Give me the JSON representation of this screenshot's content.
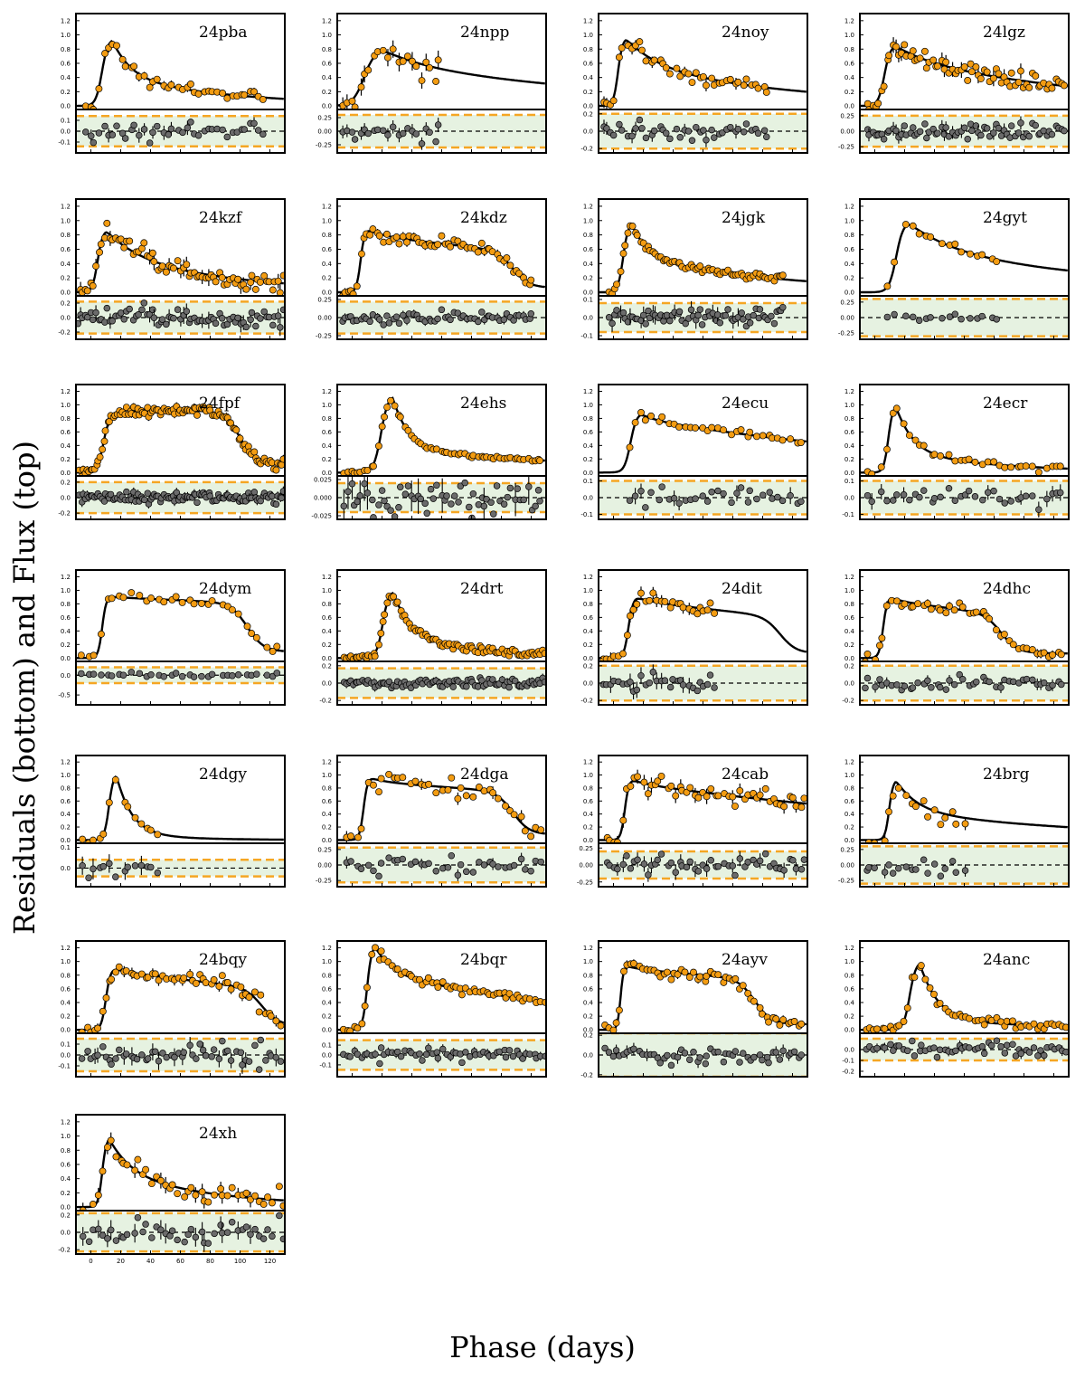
{
  "figure": {
    "xlabel": "Phase (days)",
    "ylabel": "Residuals (bottom) and Flux (top)"
  },
  "chart_data": {
    "type": "scatter",
    "grid": false,
    "xlim": [
      -10,
      130
    ],
    "x_ticks": [
      0,
      20,
      40,
      60,
      80,
      100,
      120
    ],
    "flux_ylim": [
      -0.05,
      1.3
    ],
    "flux_ticks": [
      "0.0",
      "0.2",
      "0.4",
      "0.6",
      "0.8",
      "1.0",
      "1.2"
    ],
    "colors": {
      "flux_points": "#f39c12",
      "residual_points": "#6b6b6b",
      "model": "#000000",
      "band_fill": "#e6f2e1",
      "band_edge": "#f5a623"
    },
    "panels": [
      {
        "name": "24pba",
        "model": {
          "rise": 12,
          "peak_t": 14,
          "peak_f": 0.95,
          "plateau": 0.42,
          "tau1": 12,
          "tau2": 80,
          "drop_t": null
        },
        "t_range": [
          -5,
          118
        ],
        "noise": 0.04,
        "n": 40,
        "res": {
          "range": [
            -0.2,
            0.2
          ],
          "ticks": [
            "0.1",
            "0.0",
            "-0.1"
          ],
          "tickv": [
            0.1,
            0,
            -0.1
          ],
          "band": 0.14
        }
      },
      {
        "name": "24npp",
        "model": {
          "rise": 22,
          "peak_t": 20,
          "peak_f": 0.8,
          "plateau": 0.62,
          "tau1": 25,
          "tau2": 160,
          "drop_t": null
        },
        "t_range": [
          -8,
          60
        ],
        "noise": 0.08,
        "n": 22,
        "res": {
          "range": [
            -0.4,
            0.4
          ],
          "ticks": [
            "0.25",
            "0.00",
            "-0.25"
          ],
          "tickv": [
            0.25,
            0,
            -0.25
          ],
          "band": 0.3
        }
      },
      {
        "name": "24noy",
        "model": {
          "rise": 9,
          "peak_t": 8,
          "peak_f": 0.96,
          "plateau": 0.6,
          "tau1": 20,
          "tau2": 110,
          "drop_t": null
        },
        "t_range": [
          -8,
          105
        ],
        "noise": 0.05,
        "n": 42,
        "res": {
          "range": [
            -0.25,
            0.25
          ],
          "ticks": [
            "0.2",
            "0.0",
            "-0.2"
          ],
          "tickv": [
            0.2,
            0,
            -0.2
          ],
          "band": 0.2
        }
      },
      {
        "name": "24lgz",
        "model": {
          "rise": 12,
          "peak_t": 13,
          "peak_f": 0.86,
          "plateau": 0.7,
          "tau1": 20,
          "tau2": 125,
          "drop_t": null
        },
        "t_range": [
          -6,
          128
        ],
        "noise": 0.07,
        "n": 70,
        "res": {
          "range": [
            -0.35,
            0.35
          ],
          "ticks": [
            "0.25",
            "0.00",
            "-0.25"
          ],
          "tickv": [
            0.25,
            0,
            -0.25
          ],
          "band": 0.25
        }
      },
      {
        "name": "24kzf",
        "model": {
          "rise": 10,
          "peak_t": 10,
          "peak_f": 0.87,
          "plateau": 0.55,
          "tau1": 20,
          "tau2": 80,
          "drop_t": null
        },
        "t_range": [
          -10,
          130
        ],
        "noise": 0.07,
        "n": 75,
        "res": {
          "range": [
            -0.3,
            0.3
          ],
          "ticks": [
            "0.2",
            "0.0",
            "-0.2"
          ],
          "tickv": [
            0.2,
            0,
            -0.2
          ],
          "band": 0.22
        }
      },
      {
        "name": "24kdz",
        "model": {
          "rise": 8,
          "peak_t": 10,
          "peak_f": 0.88,
          "plateau": 0.8,
          "tau1": 10,
          "tau2": 300,
          "drop_t": 108
        },
        "t_range": [
          -8,
          122
        ],
        "noise": 0.04,
        "n": 60,
        "res": {
          "range": [
            -0.3,
            0.3
          ],
          "ticks": [
            "0.25",
            "0.00",
            "-0.25"
          ],
          "tickv": [
            0.25,
            0,
            -0.25
          ],
          "band": 0.22
        }
      },
      {
        "name": "24jgk",
        "model": {
          "rise": 10,
          "peak_t": 12,
          "peak_f": 0.98,
          "plateau": 0.5,
          "tau1": 10,
          "tau2": 100,
          "drop_t": null
        },
        "t_range": [
          -3,
          115
        ],
        "noise": 0.03,
        "n": 70,
        "res": {
          "range": [
            -0.12,
            0.12
          ],
          "ticks": [
            "0.1",
            "0.0",
            "-0.1"
          ],
          "tickv": [
            0.1,
            0,
            -0.1
          ],
          "band": 0.08
        }
      },
      {
        "name": "24gyt",
        "model": {
          "rise": 14,
          "peak_t": 22,
          "peak_f": 0.98,
          "plateau": 0.6,
          "tau1": 30,
          "tau2": 150,
          "drop_t": null
        },
        "t_range": [
          8,
          85
        ],
        "noise": 0.03,
        "n": 16,
        "res": {
          "range": [
            -0.35,
            0.35
          ],
          "ticks": [
            "0.25",
            "0.00",
            "-0.25"
          ],
          "tickv": [
            0.25,
            0,
            -0.25
          ],
          "band": 0.3
        }
      },
      {
        "name": "24fpf",
        "model": {
          "rise": 12,
          "peak_t": 15,
          "peak_f": 0.87,
          "plateau": 0.9,
          "tau1": 10,
          "tau2": -400,
          "drop_t": 100
        },
        "t_range": [
          -8,
          130
        ],
        "noise": 0.04,
        "n": 110,
        "res": {
          "range": [
            -0.28,
            0.28
          ],
          "ticks": [
            "0.2",
            "0.0",
            "-0.2"
          ],
          "tickv": [
            0.2,
            0,
            -0.2
          ],
          "band": 0.2
        }
      },
      {
        "name": "24ehs",
        "model": {
          "rise": 14,
          "peak_t": 27,
          "peak_f": 1.15,
          "plateau": 0.35,
          "tau1": 10,
          "tau2": 150,
          "drop_t": null
        },
        "t_range": [
          -6,
          128
        ],
        "noise": 0.015,
        "n": 60,
        "res": {
          "range": [
            -0.03,
            0.03
          ],
          "ticks": [
            "0.025",
            "0.000",
            "-0.025"
          ],
          "tickv": [
            0.025,
            0,
            -0.025
          ],
          "band": 0.02
        }
      },
      {
        "name": "24ecu",
        "model": {
          "rise": 12,
          "peak_t": 18,
          "peak_f": 0.88,
          "plateau": 0.8,
          "tau1": 8,
          "tau2": 200,
          "drop_t": null
        },
        "t_range": [
          10,
          128
        ],
        "noise": 0.03,
        "n": 32,
        "res": {
          "range": [
            -0.13,
            0.13
          ],
          "ticks": [
            "0.1",
            "0.0",
            "-0.1"
          ],
          "tickv": [
            0.1,
            0,
            -0.1
          ],
          "band": 0.1
        }
      },
      {
        "name": "24ecr",
        "model": {
          "rise": 9,
          "peak_t": 14,
          "peak_f": 1.0,
          "plateau": 0.3,
          "tau1": 11,
          "tau2": 70,
          "drop_t": null
        },
        "t_range": [
          -6,
          128
        ],
        "noise": 0.03,
        "n": 35,
        "res": {
          "range": [
            -0.13,
            0.13
          ],
          "ticks": [
            "0.1",
            "0.0",
            "-0.1"
          ],
          "tickv": [
            0.1,
            0,
            -0.1
          ],
          "band": 0.1
        }
      },
      {
        "name": "24dym",
        "model": {
          "rise": 8,
          "peak_t": 12,
          "peak_f": 0.91,
          "plateau": 0.9,
          "tau1": 8,
          "tau2": 900,
          "drop_t": 105
        },
        "t_range": [
          -8,
          128
        ],
        "noise": 0.03,
        "n": 32,
        "res": {
          "range": [
            -0.75,
            0.35
          ],
          "ticks": [
            "0.0",
            "-0.5"
          ],
          "tickv": [
            0,
            -0.5
          ],
          "band": 0.2
        }
      },
      {
        "name": "24drt",
        "model": {
          "rise": 12,
          "peak_t": 27,
          "peak_f": 1.0,
          "plateau": 0.3,
          "tau1": 12,
          "tau2": 60,
          "drop_t": null
        },
        "t_range": [
          -6,
          130
        ],
        "noise": 0.03,
        "n": 90,
        "res": {
          "range": [
            -0.25,
            0.25
          ],
          "ticks": [
            "0.2",
            "0.0",
            "-0.2"
          ],
          "tickv": [
            0.2,
            0,
            -0.2
          ],
          "band": 0.17
        }
      },
      {
        "name": "24dit",
        "model": {
          "rise": 9,
          "peak_t": 15,
          "peak_f": 0.9,
          "plateau": 0.85,
          "tau1": 10,
          "tau2": 300,
          "drop_t": 112
        },
        "t_range": [
          -8,
          70
        ],
        "noise": 0.06,
        "n": 30,
        "res": {
          "range": [
            -0.25,
            0.25
          ],
          "ticks": [
            "0.2",
            "0.0",
            "-0.2"
          ],
          "tickv": [
            0.2,
            0,
            -0.2
          ],
          "band": 0.2
        }
      },
      {
        "name": "24dhc",
        "model": {
          "rise": 8,
          "peak_t": 10,
          "peak_f": 0.9,
          "plateau": 0.85,
          "tau1": 8,
          "tau2": 280,
          "drop_t": 85
        },
        "t_range": [
          -8,
          128
        ],
        "noise": 0.04,
        "n": 45,
        "res": {
          "range": [
            -0.25,
            0.25
          ],
          "ticks": [
            "0.2",
            "0.0",
            "-0.2"
          ],
          "tickv": [
            0.2,
            0,
            -0.2
          ],
          "band": 0.2
        }
      },
      {
        "name": "24dgy",
        "model": {
          "rise": 9,
          "peak_t": 17,
          "peak_f": 1.02,
          "plateau": 0.1,
          "tau1": 10,
          "tau2": 40,
          "drop_t": null
        },
        "t_range": [
          -8,
          48
        ],
        "noise": 0.03,
        "n": 14,
        "res": {
          "range": [
            -0.09,
            0.12
          ],
          "ticks": [
            "0.1",
            "0.0"
          ],
          "tickv": [
            0.1,
            0
          ],
          "band": 0.04
        }
      },
      {
        "name": "24dga",
        "model": {
          "rise": 8,
          "peak_t": 12,
          "peak_f": 0.96,
          "plateau": 0.9,
          "tau1": 10,
          "tau2": 500,
          "drop_t": 108
        },
        "t_range": [
          -6,
          130
        ],
        "noise": 0.06,
        "n": 38,
        "res": {
          "range": [
            -0.35,
            0.35
          ],
          "ticks": [
            "0.25",
            "0.00",
            "-0.25"
          ],
          "tickv": [
            0.25,
            0,
            -0.25
          ],
          "band": 0.28
        }
      },
      {
        "name": "24cab",
        "model": {
          "rise": 8,
          "peak_t": 12,
          "peak_f": 0.93,
          "plateau": 0.88,
          "tau1": 10,
          "tau2": 260,
          "drop_t": null
        },
        "t_range": [
          -6,
          130
        ],
        "noise": 0.07,
        "n": 50,
        "res": {
          "range": [
            -0.32,
            0.32
          ],
          "ticks": [
            "0.25",
            "0.00",
            "-0.25"
          ],
          "tickv": [
            0.25,
            0,
            -0.25
          ],
          "band": 0.2
        }
      },
      {
        "name": "24brg",
        "model": {
          "rise": 8,
          "peak_t": 14,
          "peak_f": 0.93,
          "plateau": 0.45,
          "tau1": 14,
          "tau2": 140,
          "drop_t": null
        },
        "t_range": [
          -8,
          62
        ],
        "noise": 0.07,
        "n": 18,
        "res": {
          "range": [
            -0.35,
            0.35
          ],
          "ticks": [
            "0.25",
            "0.00",
            "-0.25"
          ],
          "tickv": [
            0.25,
            0,
            -0.25
          ],
          "band": 0.3
        }
      },
      {
        "name": "24bqy",
        "model": {
          "rise": 9,
          "peak_t": 15,
          "peak_f": 0.9,
          "plateau": 0.87,
          "tau1": 8,
          "tau2": 280,
          "drop_t": 115
        },
        "t_range": [
          -6,
          128
        ],
        "noise": 0.05,
        "n": 55,
        "res": {
          "range": [
            -0.2,
            0.2
          ],
          "ticks": [
            "0.1",
            "0.0",
            "-0.1"
          ],
          "tickv": [
            0.1,
            0,
            -0.1
          ],
          "band": 0.15
        }
      },
      {
        "name": "24bqr",
        "model": {
          "rise": 9,
          "peak_t": 15,
          "peak_f": 1.25,
          "plateau": 0.85,
          "tau1": 10,
          "tau2": 160,
          "drop_t": null
        },
        "t_range": [
          -6,
          130
        ],
        "noise": 0.03,
        "n": 60,
        "res": {
          "range": [
            -0.22,
            0.22
          ],
          "ticks": [
            "0.1",
            "0.0",
            "-0.1"
          ],
          "tickv": [
            0.1,
            0,
            -0.1
          ],
          "band": 0.15
        }
      },
      {
        "name": "24ayv",
        "model": {
          "rise": 6,
          "peak_t": 8,
          "peak_f": 0.94,
          "plateau": 0.9,
          "tau1": 8,
          "tau2": 450,
          "drop_t": 95
        },
        "t_range": [
          -6,
          128
        ],
        "noise": 0.04,
        "n": 55,
        "res": {
          "range": [
            -0.22,
            0.22
          ],
          "ticks": [
            "0.2",
            "0.0",
            "-0.2"
          ],
          "tickv": [
            0.2,
            0,
            -0.2
          ],
          "band": 0.22
        }
      },
      {
        "name": "24anc",
        "model": {
          "rise": 12,
          "peak_t": 30,
          "peak_f": 1.0,
          "plateau": 0.12,
          "tau1": 12,
          "tau2": 140,
          "drop_t": null
        },
        "t_range": [
          -6,
          130
        ],
        "noise": 0.03,
        "n": 55,
        "res": {
          "range": [
            -0.25,
            0.15
          ],
          "ticks": [
            "0.0",
            "-0.1",
            "-0.2"
          ],
          "tickv": [
            0,
            -0.1,
            -0.2
          ],
          "band": 0.1
        }
      },
      {
        "name": "24xh",
        "model": {
          "rise": 8,
          "peak_t": 12,
          "peak_f": 0.98,
          "plateau": 0.5,
          "tau1": 14,
          "tau2": 70,
          "drop_t": null
        },
        "t_range": [
          -6,
          130
        ],
        "noise": 0.07,
        "n": 45,
        "res": {
          "range": [
            -0.25,
            0.25
          ],
          "ticks": [
            "0.2",
            "0.0",
            "-0.2"
          ],
          "tickv": [
            0.2,
            0,
            -0.2
          ],
          "band": 0.22
        }
      }
    ]
  }
}
